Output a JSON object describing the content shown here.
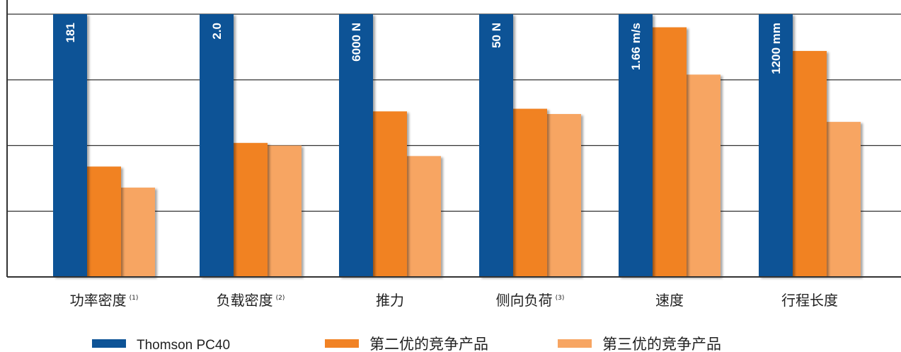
{
  "chart_data": {
    "type": "bar",
    "title": "",
    "xlabel": "",
    "ylabel": "",
    "ylim": [
      0,
      100
    ],
    "grid": true,
    "legend_position": "bottom",
    "categories": [
      "功率密度",
      "负载密度",
      "推力",
      "侧向负荷",
      "速度",
      "行程长度"
    ],
    "category_notes": [
      "(1)",
      "(2)",
      "",
      "(3)",
      "",
      ""
    ],
    "series": [
      {
        "name": "Thomson PC40",
        "color": "#0d5396",
        "values": [
          100,
          100,
          100,
          100,
          100,
          100
        ],
        "value_labels": [
          "181",
          "2.0",
          "6000 N",
          "50 N",
          "1.66 m/s",
          "1200 mm"
        ]
      },
      {
        "name": "第二优的竞争产品",
        "color": "#f18224",
        "values": [
          42,
          51,
          63,
          64,
          95,
          86
        ]
      },
      {
        "name": "第三优的竞争产品",
        "color": "#f7a562",
        "values": [
          34,
          50,
          46,
          62,
          77,
          59
        ]
      }
    ]
  }
}
